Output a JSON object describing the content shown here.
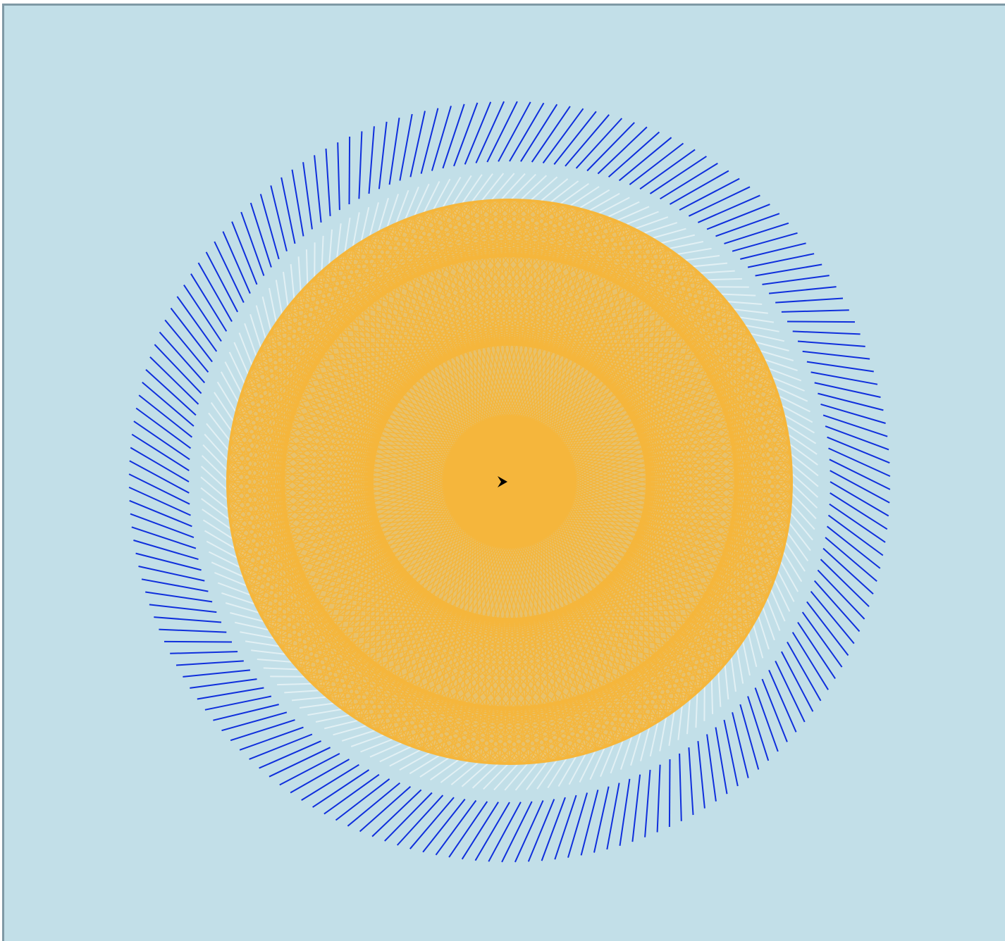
{
  "canvas": {
    "background_color": "#c2dfe8",
    "border_color": "#7f99a5"
  },
  "artwork": {
    "description_type": "turtle-graphics radial pattern",
    "outer_rays": {
      "color": "#0f2fdc",
      "count": 180
    },
    "inner_rays": {
      "color": "#e2f0f4",
      "count": 180
    },
    "web": {
      "color": "#f5b63c",
      "count": 180
    },
    "turtle_cursor": {
      "icon": "turtle-arrow-icon",
      "color": "#000000",
      "heading_degrees": 0
    }
  }
}
